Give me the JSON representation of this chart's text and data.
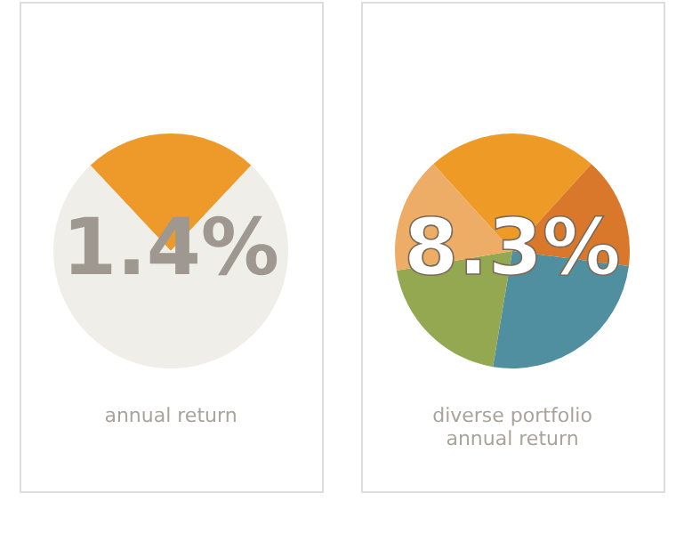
{
  "chart_data": [
    {
      "type": "pie",
      "title": "1.4%",
      "annotations": [
        "annual return"
      ],
      "categories": [
        null,
        null
      ],
      "values": [
        24,
        76
      ],
      "colors": [
        "#ee9a2a",
        "#efeee8"
      ]
    },
    {
      "type": "pie",
      "title": "8.3%",
      "annotations": [
        "diverse portfolio",
        "annual return"
      ],
      "categories": [
        null,
        null,
        null,
        null,
        null
      ],
      "values": [
        23.5,
        15.3,
        25.6,
        19.7,
        15.9
      ],
      "colors": [
        "#ee9a27",
        "#d9782a",
        "#4f8fa0",
        "#93a850",
        "#edad66"
      ]
    }
  ]
}
